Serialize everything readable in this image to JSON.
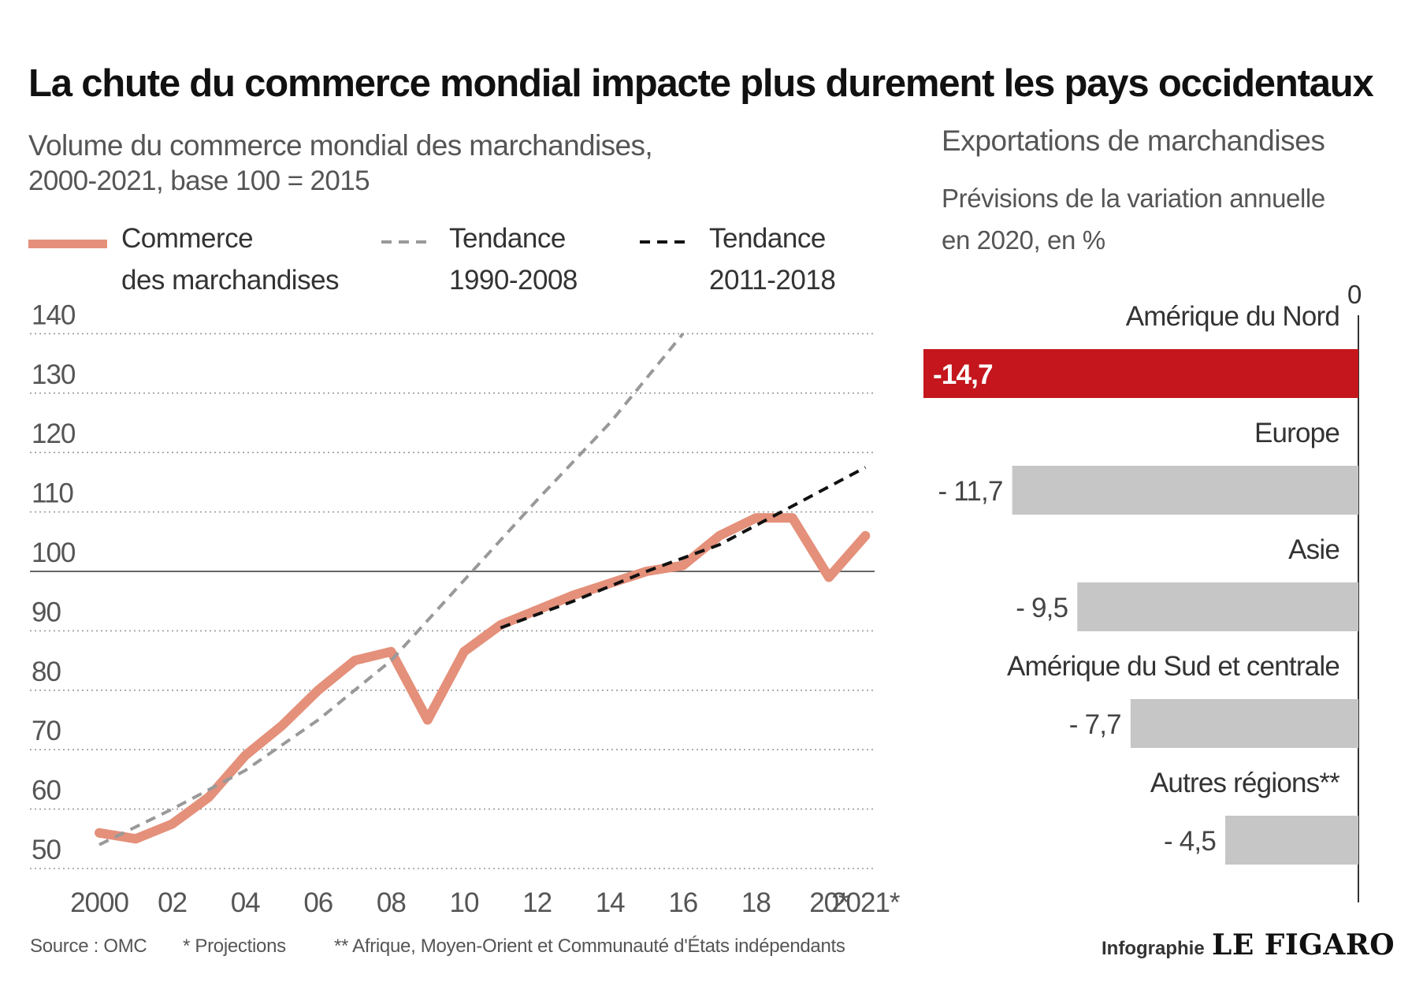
{
  "header": {
    "title": "La chute du commerce mondial impacte plus durement les pays occidentaux"
  },
  "left_chart": {
    "subtitle_line1": "Volume du commerce mondial des marchandises,",
    "subtitle_line2": "2000-2021,  base 100 = 2015",
    "legend": {
      "series1_line1": "Commerce",
      "series1_line2": "des marchandises",
      "series2_line1": "Tendance",
      "series2_line2": "1990-2008",
      "series3_line1": "Tendance",
      "series3_line2": "2011-2018"
    }
  },
  "right_chart": {
    "title": "Exportations de marchandises",
    "subtitle_line1": "Prévisions de la variation annuelle",
    "subtitle_line2": "en 2020, en %",
    "zero_label": "0"
  },
  "footer": {
    "source": "Source : OMC",
    "note1": "* Projections",
    "note2": "** Afrique, Moyen-Orient et Communauté d'États indépendants",
    "credit_small": "Infographie",
    "credit_big": "LE FIGARO"
  },
  "colors": {
    "commerce": "#e4907a",
    "trend1990": "#999999",
    "trend2011": "#111111",
    "highlight_bar": "#c4161c",
    "bar": "#c6c6c6",
    "grid": "#999999"
  },
  "chart_data": [
    {
      "type": "line",
      "x_ticks": [
        "2000",
        "02",
        "04",
        "06",
        "08",
        "10",
        "12",
        "14",
        "16",
        "18",
        "20*",
        "2021*"
      ],
      "x_tick_values": [
        2000,
        2002,
        2004,
        2006,
        2008,
        2010,
        2012,
        2014,
        2016,
        2018,
        2020,
        2021
      ],
      "ylim": [
        50,
        140
      ],
      "y_ticks": [
        50,
        60,
        70,
        80,
        90,
        100,
        110,
        120,
        130,
        140
      ],
      "reference_line": 100,
      "grid": "horizontal dotted",
      "series": [
        {
          "name": "Commerce des marchandises",
          "style": "solid",
          "x": [
            2000,
            2001,
            2002,
            2003,
            2004,
            2005,
            2006,
            2007,
            2008,
            2009,
            2010,
            2011,
            2012,
            2013,
            2014,
            2015,
            2016,
            2017,
            2018,
            2019,
            2020,
            2021
          ],
          "values": [
            56,
            55,
            57.5,
            62,
            69,
            74,
            80,
            85,
            86.5,
            75,
            86.5,
            91,
            93.5,
            96,
            98,
            100,
            101,
            106,
            109,
            109,
            99,
            106
          ]
        },
        {
          "name": "Tendance 1990-2008",
          "style": "dashed",
          "x": [
            2000,
            2002,
            2004,
            2006,
            2008,
            2010,
            2012,
            2014,
            2016
          ],
          "values": [
            54,
            60,
            66.5,
            75,
            85,
            98.5,
            112,
            125,
            140
          ]
        },
        {
          "name": "Tendance 2011-2018",
          "style": "dashed",
          "x": [
            2011,
            2013,
            2015,
            2017,
            2019,
            2021
          ],
          "values": [
            90.5,
            95,
            100,
            104.5,
            111,
            117.5
          ]
        }
      ]
    },
    {
      "type": "bar",
      "orientation": "horizontal",
      "categories": [
        "Amérique du Nord",
        "Europe",
        "Asie",
        "Amérique du Sud et centrale",
        "Autres régions**"
      ],
      "values": [
        -14.7,
        -11.7,
        -9.5,
        -7.7,
        -4.5
      ],
      "value_labels": [
        "-14,7",
        "- 11,7",
        "- 9,5",
        "- 7,7",
        "- 4,5"
      ],
      "xlim": [
        -14.7,
        0
      ],
      "highlight_index": 0
    }
  ]
}
